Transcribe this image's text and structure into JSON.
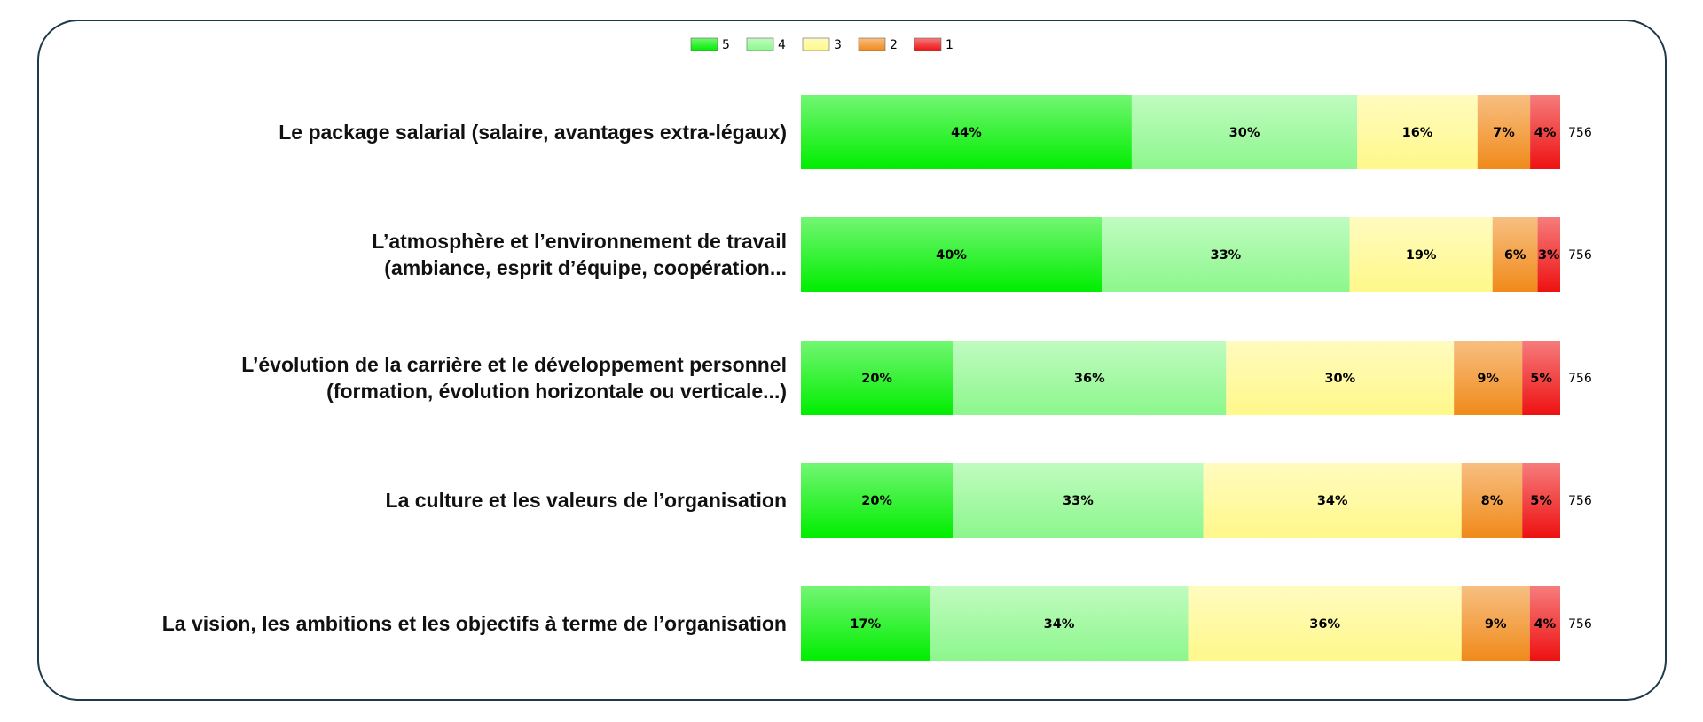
{
  "chart_data": {
    "type": "bar",
    "orientation": "horizontal",
    "stacked": true,
    "percent": true,
    "legend_position": "top",
    "categories": [
      [
        "Le package salarial (salaire, avantages extra-légaux)"
      ],
      [
        "L’atmosphère et l’environnement de travail",
        "(ambiance, esprit d’équipe, coopération..."
      ],
      [
        "L’évolution de la carrière et le développement personnel",
        "(formation, évolution horizontale ou verticale...)"
      ],
      [
        "La culture et les valeurs de l’organisation"
      ],
      [
        "La vision, les ambitions et les objectifs à terme de l’organisation"
      ]
    ],
    "series": [
      {
        "name": "5",
        "color": "#00ee00",
        "values": [
          44,
          40,
          20,
          20,
          17
        ]
      },
      {
        "name": "4",
        "color": "#8cf78c",
        "values": [
          30,
          33,
          36,
          33,
          34
        ]
      },
      {
        "name": "3",
        "color": "#fff88a",
        "values": [
          16,
          19,
          30,
          34,
          36
        ]
      },
      {
        "name": "2",
        "color": "#f08a1a",
        "values": [
          7,
          6,
          9,
          8,
          9
        ]
      },
      {
        "name": "1",
        "color": "#ee1111",
        "values": [
          4,
          3,
          5,
          5,
          4
        ]
      }
    ],
    "labels": [
      [
        "44%",
        "30%",
        "16%",
        "7%",
        "4%"
      ],
      [
        "40%",
        "33%",
        "19%",
        "6%",
        "3%"
      ],
      [
        "20%",
        "36%",
        "30%",
        "9%",
        "5%"
      ],
      [
        "20%",
        "33%",
        "34%",
        "8%",
        "5%"
      ],
      [
        "17%",
        "34%",
        "36%",
        "9%",
        "4%"
      ]
    ],
    "n": [
      "756",
      "756",
      "756",
      "756",
      "756"
    ]
  }
}
